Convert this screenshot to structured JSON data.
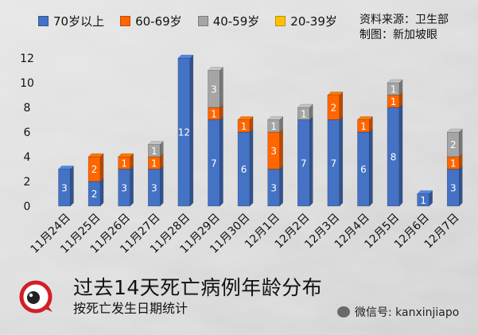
{
  "legend": {
    "items": [
      {
        "label": "70岁以上",
        "color": "#4472c4"
      },
      {
        "label": "60-69岁",
        "color": "#ff6600"
      },
      {
        "label": "40-59岁",
        "color": "#a5a5a5"
      },
      {
        "label": "20-39岁",
        "color": "#ffc000"
      }
    ]
  },
  "source": {
    "line1": "资料来源：卫生部",
    "line2": "制图：新加坡眼"
  },
  "footer": {
    "title": "过去14天死亡病例年龄分布",
    "subtitle": "按死亡发生日期统计",
    "wechat": "微信号: kanxinjiapo",
    "logo_text": "新加坡眼"
  },
  "chart_data": {
    "type": "bar",
    "stacked": true,
    "title": "过去14天死亡病例年龄分布",
    "subtitle": "按死亡发生日期统计",
    "categories": [
      "11月24日",
      "11月25日",
      "11月26日",
      "11月27日",
      "11月28日",
      "11月29日",
      "11月30日",
      "12月1日",
      "12月2日",
      "12月3日",
      "12月4日",
      "12月5日",
      "12月6日",
      "12月7日"
    ],
    "series": [
      {
        "name": "70岁以上",
        "color": "#4472c4",
        "values": [
          3,
          2,
          3,
          3,
          12,
          7,
          6,
          3,
          7,
          7,
          6,
          8,
          1,
          3
        ]
      },
      {
        "name": "60-69岁",
        "color": "#ff6600",
        "values": [
          0,
          2,
          1,
          1,
          0,
          1,
          1,
          3,
          0,
          2,
          1,
          1,
          0,
          1
        ]
      },
      {
        "name": "40-59岁",
        "color": "#a5a5a5",
        "values": [
          0,
          0,
          0,
          1,
          0,
          3,
          0,
          1,
          1,
          0,
          0,
          1,
          0,
          2
        ]
      },
      {
        "name": "20-39岁",
        "color": "#ffc000",
        "values": [
          0,
          0,
          0,
          0,
          0,
          0,
          0,
          0,
          0,
          0,
          0,
          0,
          0,
          0
        ]
      }
    ],
    "yticks": [
      0,
      2,
      4,
      6,
      8,
      10,
      12
    ],
    "ylim": [
      0,
      12
    ],
    "grid": false,
    "legend_position": "top-left"
  }
}
